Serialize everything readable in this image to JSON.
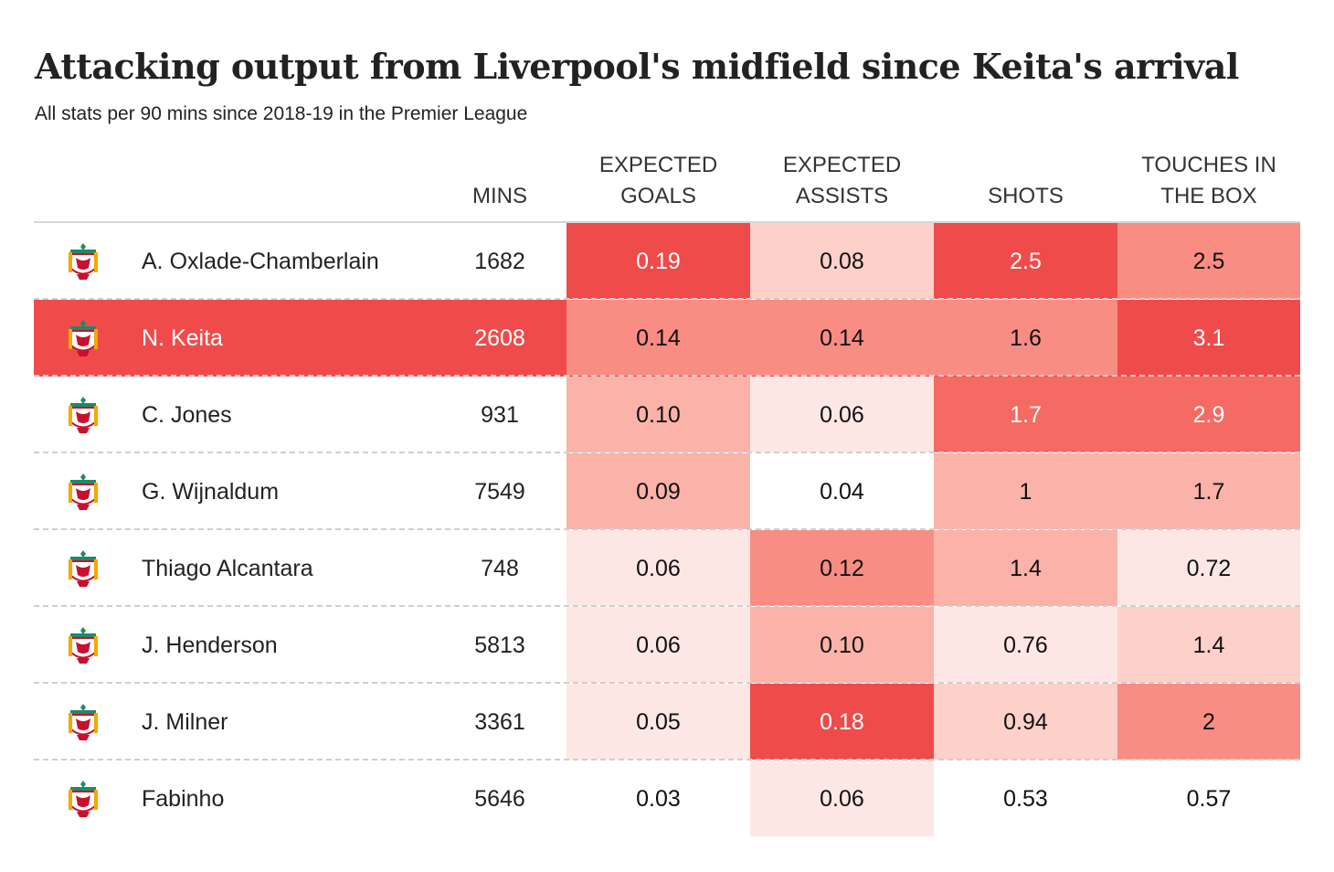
{
  "title": "Attacking output from Liverpool's midfield since Keita's arrival",
  "subtitle": "All stats per 90 mins since 2018-19 in the Premier League",
  "colors": {
    "highlight_row": "#ef4b4b",
    "scale": [
      "#ffffff",
      "#fde7e4",
      "#fdd0ca",
      "#fbb2a9",
      "#f98d83",
      "#f56a63",
      "#ef4b4b"
    ]
  },
  "chart_data": {
    "type": "table",
    "columns": {
      "mins": "MINS",
      "metrics": [
        {
          "line1": "EXPECTED",
          "line2": "GOALS"
        },
        {
          "line1": "EXPECTED",
          "line2": "ASSISTS"
        },
        {
          "line1": "",
          "line2": "SHOTS"
        },
        {
          "line1": "TOUCHES IN",
          "line2": "THE BOX"
        }
      ]
    },
    "highlight": "N. Keita",
    "rows": [
      {
        "player": "A. Oxlade-Chamberlain",
        "mins": "1682",
        "values": [
          "0.19",
          "0.08",
          "2.5",
          "2.5"
        ],
        "levels": [
          6,
          2,
          6,
          4
        ]
      },
      {
        "player": "N. Keita",
        "mins": "2608",
        "values": [
          "0.14",
          "0.14",
          "1.6",
          "3.1"
        ],
        "levels": [
          4,
          4,
          4,
          6
        ]
      },
      {
        "player": "C. Jones",
        "mins": "931",
        "values": [
          "0.10",
          "0.06",
          "1.7",
          "2.9"
        ],
        "levels": [
          3,
          1,
          5,
          5
        ]
      },
      {
        "player": "G. Wijnaldum",
        "mins": "7549",
        "values": [
          "0.09",
          "0.04",
          "1",
          "1.7"
        ],
        "levels": [
          3,
          0,
          3,
          3
        ]
      },
      {
        "player": "Thiago Alcantara",
        "mins": "748",
        "values": [
          "0.06",
          "0.12",
          "1.4",
          "0.72"
        ],
        "levels": [
          1,
          4,
          3,
          1
        ]
      },
      {
        "player": "J. Henderson",
        "mins": "5813",
        "values": [
          "0.06",
          "0.10",
          "0.76",
          "1.4"
        ],
        "levels": [
          1,
          3,
          1,
          2
        ]
      },
      {
        "player": "J. Milner",
        "mins": "3361",
        "values": [
          "0.05",
          "0.18",
          "0.94",
          "2"
        ],
        "levels": [
          1,
          6,
          2,
          4
        ]
      },
      {
        "player": "Fabinho",
        "mins": "5646",
        "values": [
          "0.03",
          "0.06",
          "0.53",
          "0.57"
        ],
        "levels": [
          0,
          1,
          0,
          0
        ]
      }
    ]
  }
}
